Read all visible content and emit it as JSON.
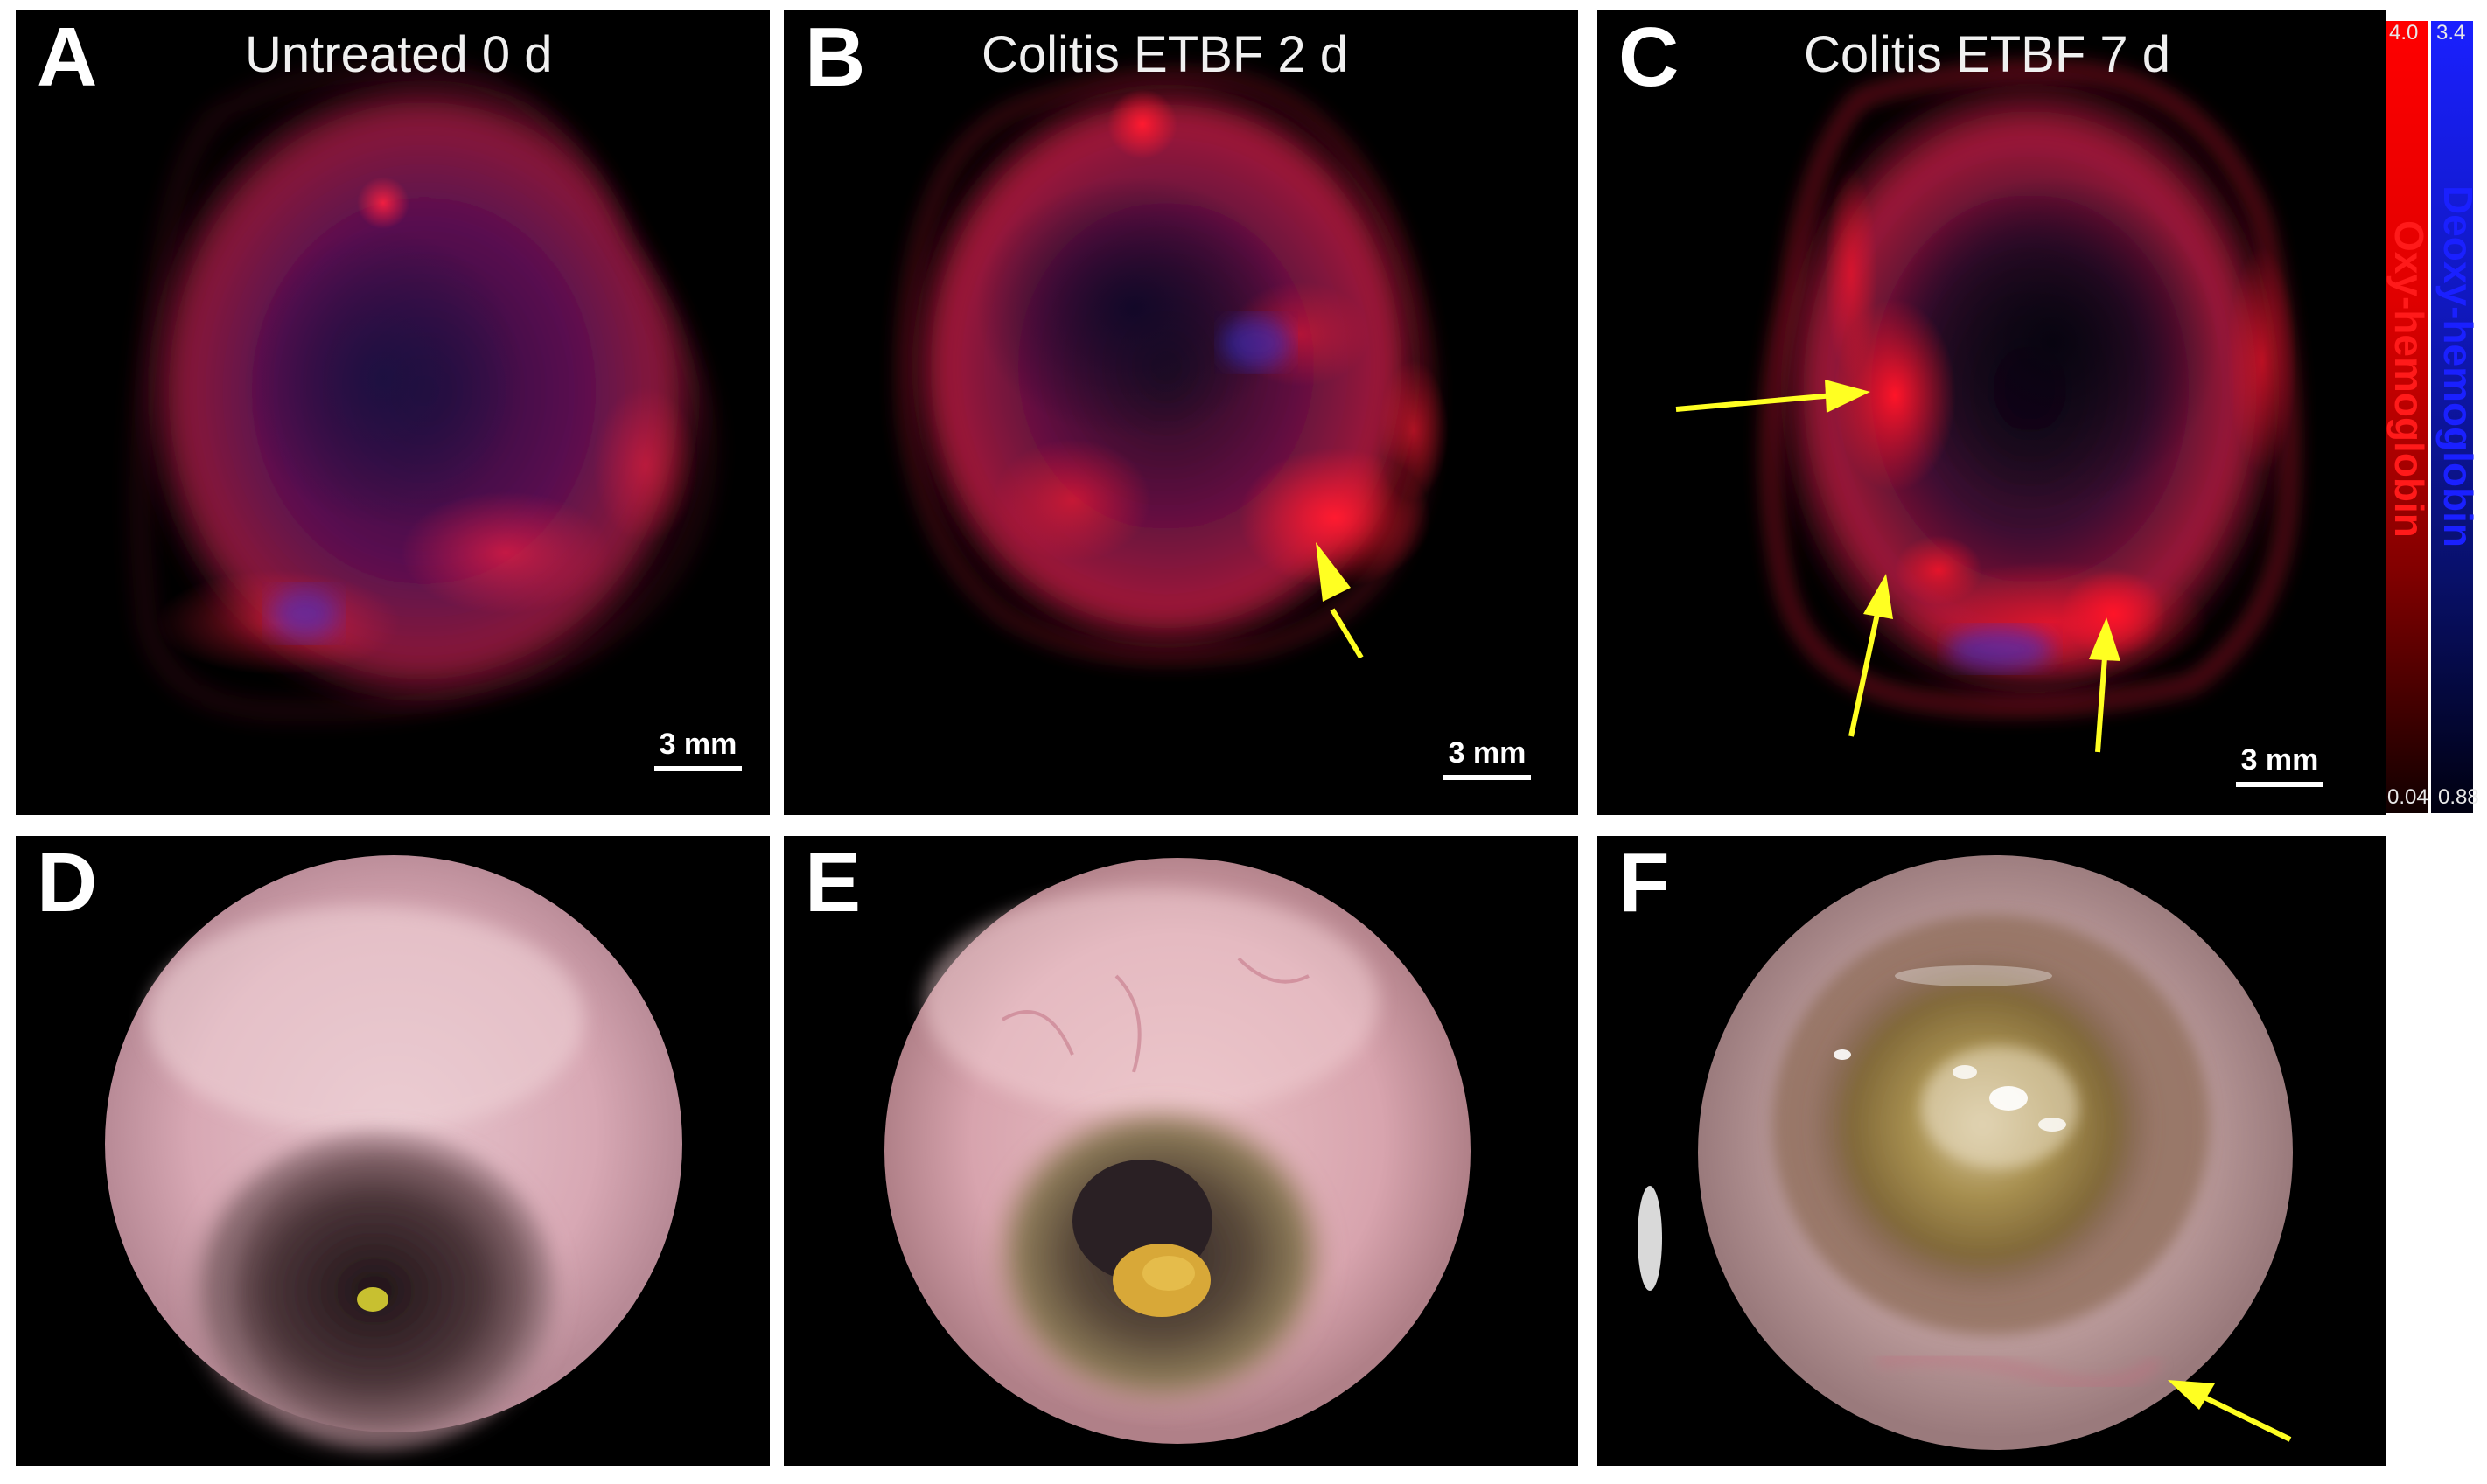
{
  "panels": {
    "a": {
      "letter": "A",
      "title": "Untreated 0 d",
      "scale": "3 mm"
    },
    "b": {
      "letter": "B",
      "title": "Colitis ETBF 2 d",
      "scale": "3 mm"
    },
    "c": {
      "letter": "C",
      "title": "Colitis ETBF 7 d",
      "scale": "3 mm"
    },
    "d": {
      "letter": "D"
    },
    "e": {
      "letter": "E"
    },
    "f": {
      "letter": "F"
    }
  },
  "colorbar": {
    "oxy_label": "Oxy-hemoglobin",
    "deoxy_label": "Deoxy-hemoglobin",
    "oxy_max": "4.0",
    "oxy_min": "0.04",
    "deoxy_max": "3.4",
    "deoxy_min": "0.88",
    "oxy_color": "#ff0000",
    "deoxy_color": "#1a20ff"
  },
  "colors": {
    "arrow": "#ffff22",
    "background": "#000000",
    "tissue_red": "#e0203a",
    "tissue_blue": "#3030c0",
    "mucosa_pink": "#e8b4bc"
  }
}
